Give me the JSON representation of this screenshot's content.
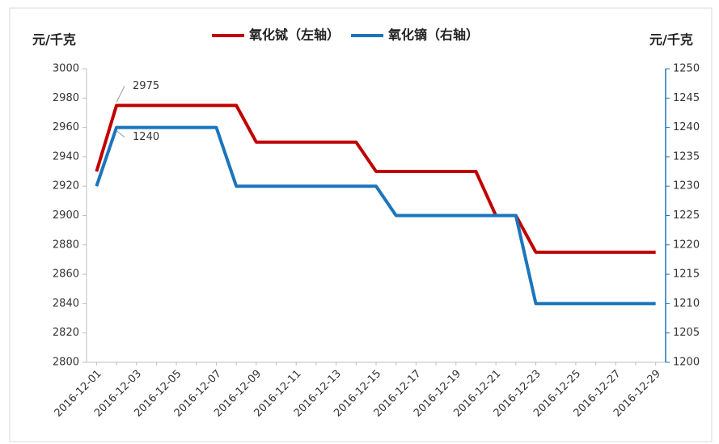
{
  "chart_data": {
    "type": "line",
    "y_label": "元/千克",
    "y2_label": "元/千克",
    "categories": [
      "2016-12-01",
      null,
      "2016-12-03",
      null,
      "2016-12-05",
      null,
      "2016-12-07",
      null,
      "2016-12-09",
      null,
      "2016-12-11",
      null,
      "2016-12-13",
      null,
      "2016-12-15",
      null,
      "2016-12-17",
      null,
      "2016-12-19",
      null,
      "2016-12-21",
      null,
      "2016-12-23",
      null,
      "2016-12-25",
      null,
      "2016-12-27",
      null,
      "2016-12-29"
    ],
    "series": [
      {
        "name": "氧化铽（左轴）",
        "color": "#c00000",
        "axis": "y",
        "values": [
          2930,
          2975,
          2975,
          2975,
          2975,
          2975,
          2975,
          2975,
          2950,
          2950,
          2950,
          2950,
          2950,
          2950,
          2930,
          2930,
          2930,
          2930,
          2930,
          2930,
          2900,
          2900,
          2875,
          2875,
          2875,
          2875,
          2875,
          2875,
          2875
        ]
      },
      {
        "name": "氧化镝（右轴）",
        "color": "#1b75bc",
        "axis": "y2",
        "values": [
          1230,
          1240,
          1240,
          1240,
          1240,
          1240,
          1240,
          1230,
          1230,
          1230,
          1230,
          1230,
          1230,
          1230,
          1230,
          1225,
          1225,
          1225,
          1225,
          1225,
          1225,
          1225,
          1210,
          1210,
          1210,
          1210,
          1210,
          1210,
          1210
        ]
      }
    ],
    "ylim": [
      2800,
      3000
    ],
    "yticks": [
      2800,
      2820,
      2840,
      2860,
      2880,
      2900,
      2920,
      2940,
      2960,
      2980,
      3000
    ],
    "y2lim": [
      1200,
      1250
    ],
    "y2ticks": [
      1200,
      1205,
      1210,
      1215,
      1220,
      1225,
      1230,
      1235,
      1240,
      1245,
      1250
    ],
    "legend": "top",
    "grid": false
  }
}
